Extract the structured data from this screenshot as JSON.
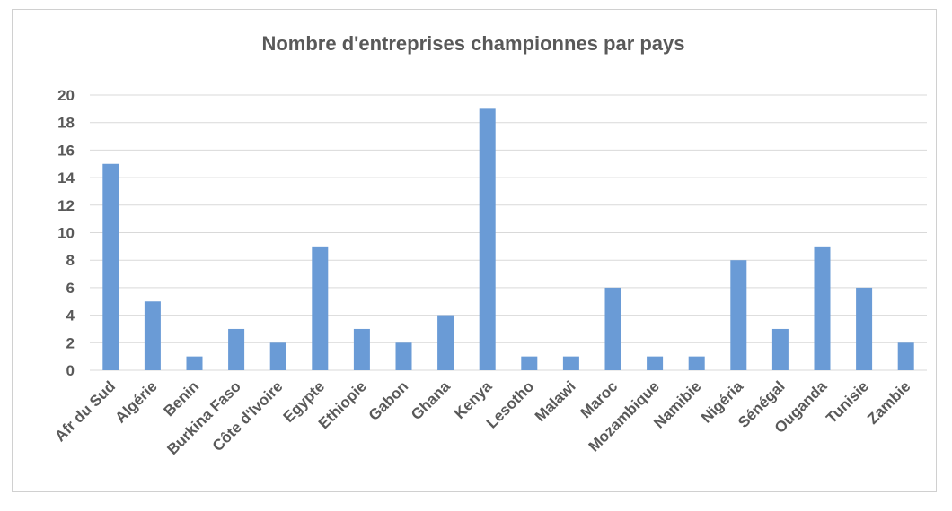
{
  "chart_data": {
    "type": "bar",
    "title": "Nombre d'entreprises championnes par pays",
    "xlabel": "",
    "ylabel": "",
    "ylim": [
      0,
      20
    ],
    "yticks": [
      0,
      2,
      4,
      6,
      8,
      10,
      12,
      14,
      16,
      18,
      20
    ],
    "grid": true,
    "legend": "none",
    "bar_color": "#6a9bd6",
    "grid_color": "#d9d9d9",
    "categories": [
      "Afr du Sud",
      "Algérie",
      "Benin",
      "Burkina Faso",
      "Côte d'Ivoire",
      "Egypte",
      "Ethiopie",
      "Gabon",
      "Ghana",
      "Kenya",
      "Lesotho",
      "Malawi",
      "Maroc",
      "Mozambique",
      "Namibie",
      "Nigéria",
      "Sénégal",
      "Ouganda",
      "Tunisie",
      "Zambie"
    ],
    "values": [
      15,
      5,
      1,
      3,
      2,
      9,
      3,
      2,
      4,
      19,
      1,
      1,
      6,
      1,
      1,
      8,
      3,
      9,
      6,
      2
    ]
  }
}
